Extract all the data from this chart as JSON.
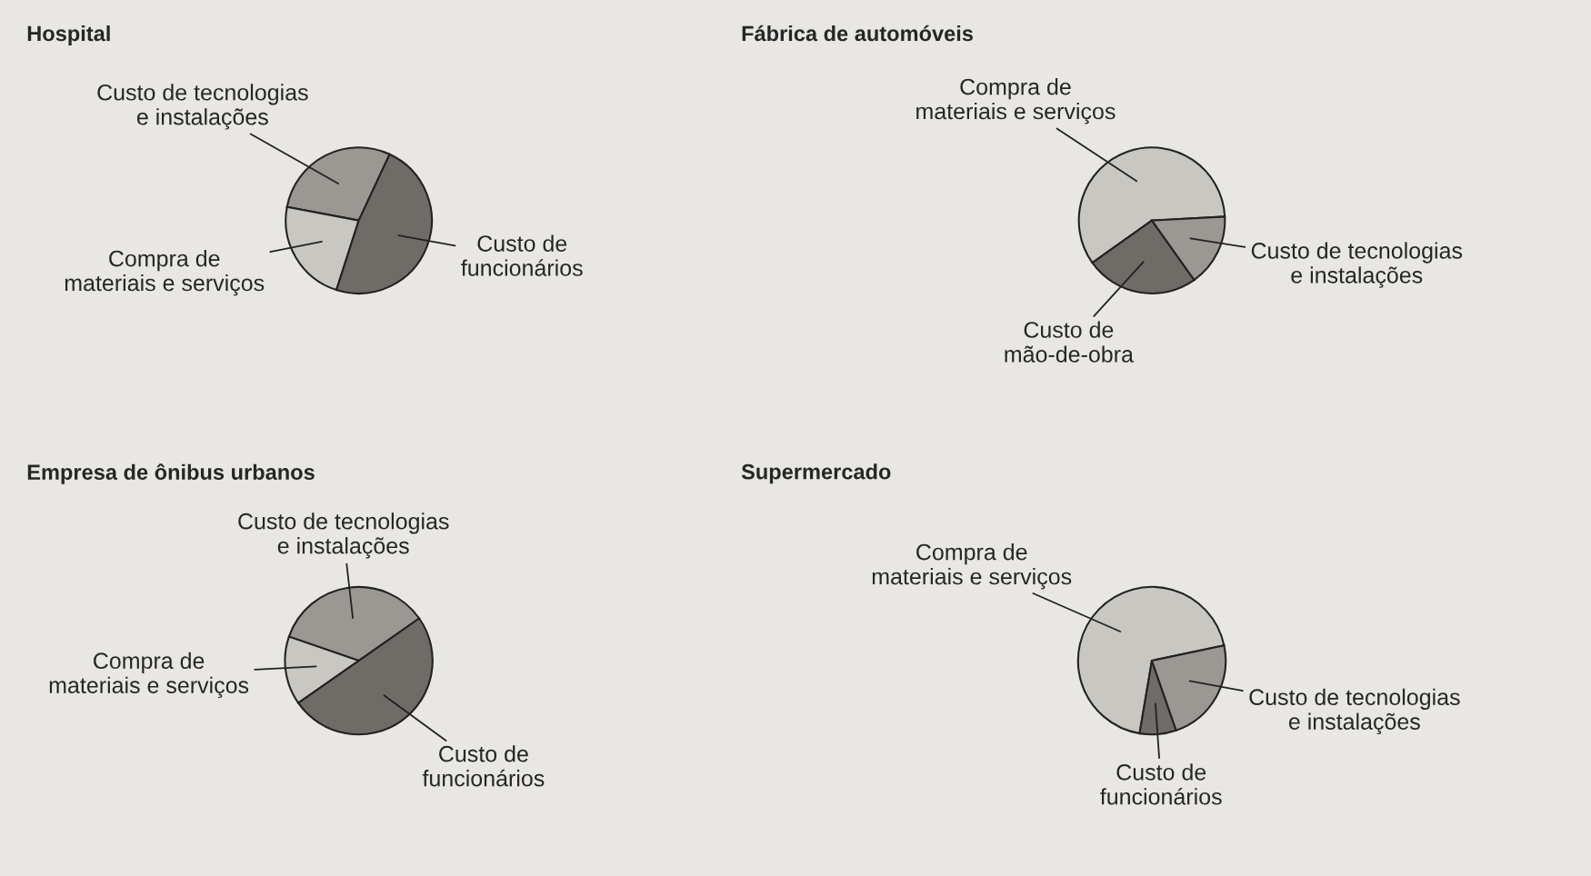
{
  "chart_data": [
    {
      "type": "pie",
      "title": "Hospital",
      "categories": [
        "Custo de tecnologias\ne instalações",
        "Compra de\nmateriais e serviços",
        "Custo de\nfuncionários"
      ],
      "values": [
        29,
        23,
        48
      ],
      "colors": [
        "#9b9893",
        "#c9c7c2",
        "#6f6b67"
      ]
    },
    {
      "type": "pie",
      "title": "Fábrica de automóveis",
      "categories": [
        "Compra de\nmateriais e serviços",
        "Custo de\nmão-de-obra",
        "Custo de tecnologias\ne instalações"
      ],
      "values": [
        59,
        25,
        16
      ],
      "colors": [
        "#c9c7c2",
        "#6f6b67",
        "#9b9893"
      ]
    },
    {
      "type": "pie",
      "title": "Empresa de ônibus urbanos",
      "categories": [
        "Custo de tecnologias\ne instalações",
        "Compra de\nmateriais e serviços",
        "Custo de\nfuncionários"
      ],
      "values": [
        35,
        15,
        50
      ],
      "colors": [
        "#9b9893",
        "#c9c7c2",
        "#6f6b67"
      ]
    },
    {
      "type": "pie",
      "title": "Supermercado",
      "categories": [
        "Compra de\nmateriais e serviços",
        "Custo de\nfuncionários",
        "Custo de tecnologias\ne instalações"
      ],
      "values": [
        69,
        8,
        23
      ],
      "colors": [
        "#c9c7c2",
        "#6f6b67",
        "#9b9893"
      ]
    }
  ]
}
